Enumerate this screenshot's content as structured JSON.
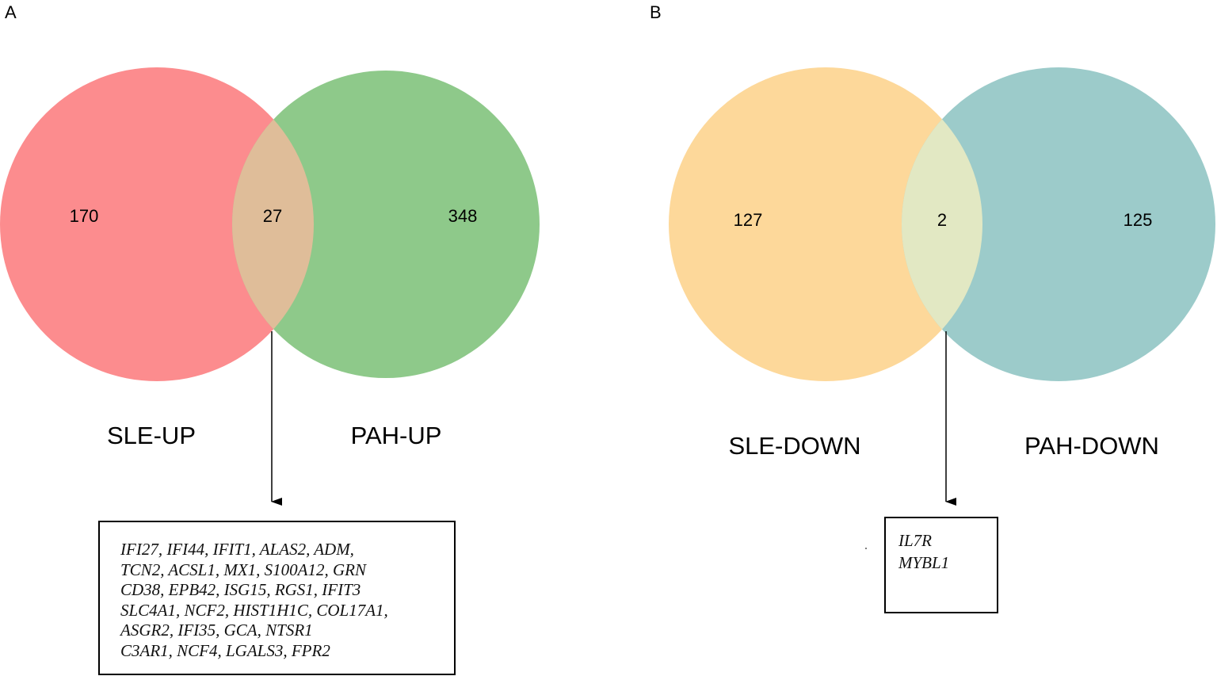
{
  "panel_a": {
    "letter": "A",
    "left_set": {
      "label": "SLE-UP",
      "count": "170",
      "color": "#fc8c8e"
    },
    "right_set": {
      "label": "PAH-UP",
      "count": "348",
      "color": "#8ec98a"
    },
    "intersection": {
      "count": "27",
      "color": "#dfbd99"
    },
    "genes": [
      "IFI27, IFI44, IFIT1, ALAS2, ADM,",
      "TCN2, ACSL1, MX1, S100A12, GRN",
      "CD38, EPB42, ISG15, RGS1, IFIT3",
      "SLC4A1, NCF2, HIST1H1C, COL17A1,",
      "ASGR2, IFI35, GCA, NTSR1",
      "C3AR1, NCF4, LGALS3, FPR2"
    ]
  },
  "panel_b": {
    "letter": "B",
    "left_set": {
      "label": "SLE-DOWN",
      "count": "127",
      "color": "#fdd89a"
    },
    "right_set": {
      "label": "PAH-DOWN",
      "count": "125",
      "color": "#9ccbca"
    },
    "intersection": {
      "count": "2",
      "color": "#e2e8c3"
    },
    "genes": [
      "IL7R",
      "MYBL1"
    ]
  }
}
